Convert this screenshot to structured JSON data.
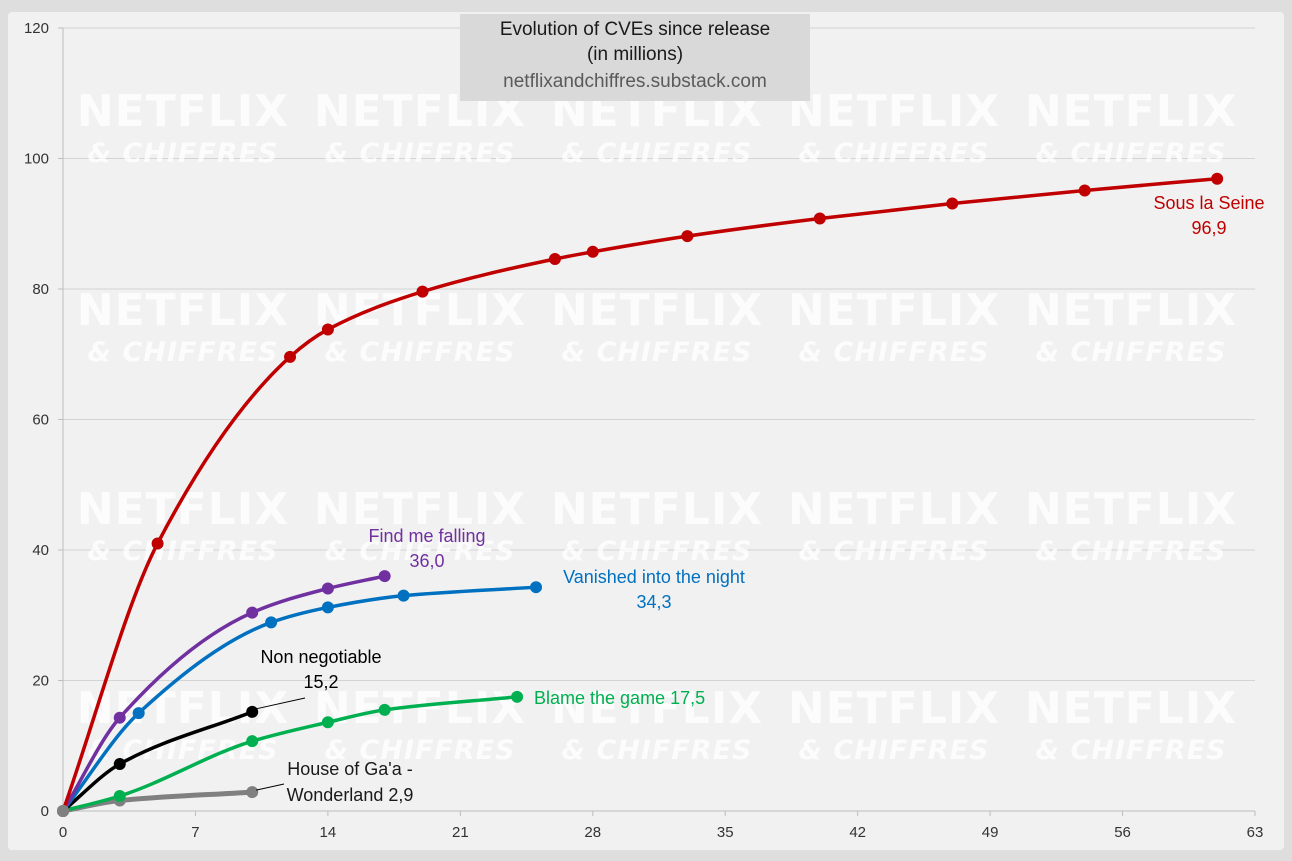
{
  "chart_data": {
    "type": "line",
    "title": "Evolution of CVEs since release",
    "subtitle": "(in millions)",
    "source": "netflixandchiffres.substack.com",
    "watermark": {
      "line1": "NETFLIX",
      "line2": "& CHIFFRES"
    },
    "xlim": [
      0,
      63
    ],
    "ylim": [
      0,
      120
    ],
    "xticks": [
      0,
      7,
      14,
      21,
      28,
      35,
      42,
      49,
      56,
      63
    ],
    "yticks": [
      0,
      20,
      40,
      60,
      80,
      100,
      120
    ],
    "grid": true,
    "series": [
      {
        "name": "Sous la Seine",
        "value_label": "96,9",
        "color": "#c00000",
        "x": [
          0,
          5,
          12,
          14,
          19,
          26,
          28,
          33,
          40,
          47,
          54,
          61
        ],
        "y": [
          0,
          41.0,
          69.6,
          73.8,
          79.6,
          84.6,
          85.7,
          88.1,
          90.8,
          93.1,
          95.1,
          96.9
        ]
      },
      {
        "name": "Find me falling",
        "value_label": "36,0",
        "color": "#7030a0",
        "x": [
          0,
          3,
          10,
          14,
          17
        ],
        "y": [
          0,
          14.3,
          30.4,
          34.1,
          36.0
        ]
      },
      {
        "name": "Vanished into the night",
        "value_label": "34,3",
        "color": "#0070c0",
        "x": [
          0,
          4,
          11,
          14,
          18,
          25
        ],
        "y": [
          0,
          15.0,
          28.9,
          31.2,
          33.0,
          34.3
        ]
      },
      {
        "name": "Non negotiable",
        "value_label": "15,2",
        "color": "#000000",
        "x": [
          0,
          3,
          10
        ],
        "y": [
          0,
          7.2,
          15.2
        ]
      },
      {
        "name": "Blame the game",
        "value_label": "17,5",
        "color": "#00b050",
        "x": [
          0,
          3,
          10,
          14,
          17,
          24
        ],
        "y": [
          0,
          2.3,
          10.7,
          13.6,
          15.5,
          17.5
        ]
      },
      {
        "name": "House of Ga'a - Wonderland",
        "value_label": "2,9",
        "color": "#808080",
        "x": [
          0,
          3,
          10
        ],
        "y": [
          0,
          1.6,
          2.9
        ]
      }
    ]
  }
}
